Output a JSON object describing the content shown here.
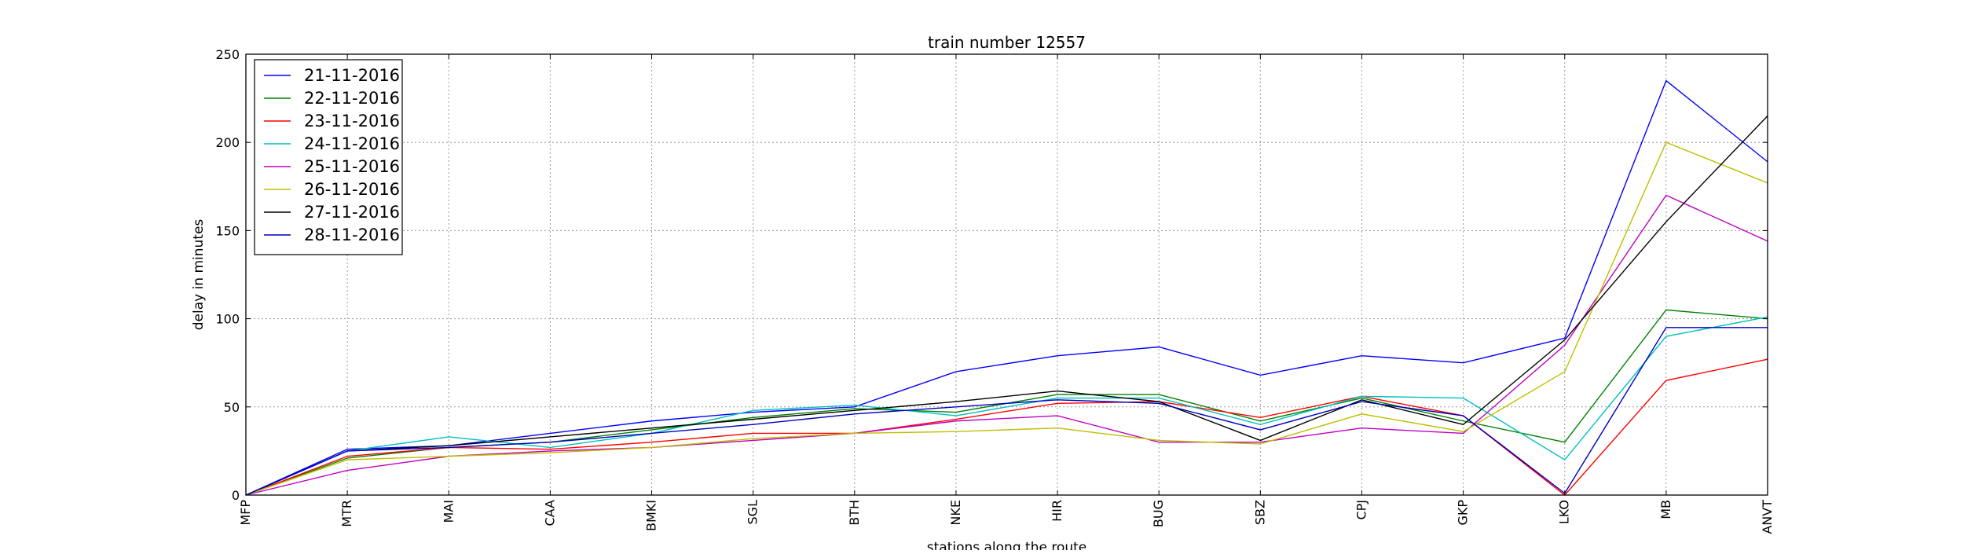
{
  "chart_data": {
    "type": "line",
    "title": "train number 12557",
    "xlabel": "stations along the route",
    "ylabel": "delay in minutes",
    "categories": [
      "MFP",
      "MTR",
      "MAI",
      "CAA",
      "BMKI",
      "SGL",
      "BTH",
      "NKE",
      "HIR",
      "BUG",
      "SBZ",
      "CPJ",
      "GKP",
      "LKO",
      "MB",
      "ANVT"
    ],
    "ylim": [
      0,
      250
    ],
    "yticks": [
      0,
      50,
      100,
      150,
      200,
      250
    ],
    "grid": true,
    "legend_position": "top-left",
    "series": [
      {
        "name": "21-11-2016",
        "color": "#0000ff",
        "values": [
          0,
          26,
          28,
          35,
          42,
          47,
          50,
          70,
          79,
          84,
          68,
          79,
          75,
          89,
          235,
          189
        ]
      },
      {
        "name": "22-11-2016",
        "color": "#008000",
        "values": [
          0,
          21,
          27,
          30,
          37,
          44,
          49,
          47,
          57,
          57,
          42,
          55,
          42,
          30,
          105,
          100
        ]
      },
      {
        "name": "23-11-2016",
        "color": "#ff0000",
        "values": [
          0,
          22,
          27,
          26,
          30,
          35,
          35,
          43,
          52,
          53,
          44,
          56,
          45,
          0,
          65,
          77
        ]
      },
      {
        "name": "24-11-2016",
        "color": "#00bfbf",
        "values": [
          0,
          25,
          33,
          27,
          35,
          48,
          51,
          45,
          55,
          55,
          40,
          56,
          55,
          20,
          90,
          101
        ]
      },
      {
        "name": "25-11-2016",
        "color": "#bf00bf",
        "values": [
          0,
          14,
          22,
          25,
          27,
          31,
          35,
          42,
          45,
          30,
          30,
          38,
          35,
          85,
          170,
          144
        ]
      },
      {
        "name": "26-11-2016",
        "color": "#bfbf00",
        "values": [
          0,
          20,
          22,
          24,
          27,
          32,
          35,
          36,
          38,
          31,
          29,
          46,
          36,
          70,
          200,
          177
        ]
      },
      {
        "name": "27-11-2016",
        "color": "#000000",
        "values": [
          0,
          25,
          28,
          33,
          38,
          43,
          48,
          53,
          59,
          53,
          31,
          54,
          40,
          88,
          155,
          215
        ]
      },
      {
        "name": "28-11-2016",
        "color": "#0000bf",
        "values": [
          0,
          25,
          27,
          30,
          35,
          40,
          46,
          50,
          54,
          52,
          37,
          53,
          45,
          1,
          95,
          95
        ]
      }
    ]
  }
}
